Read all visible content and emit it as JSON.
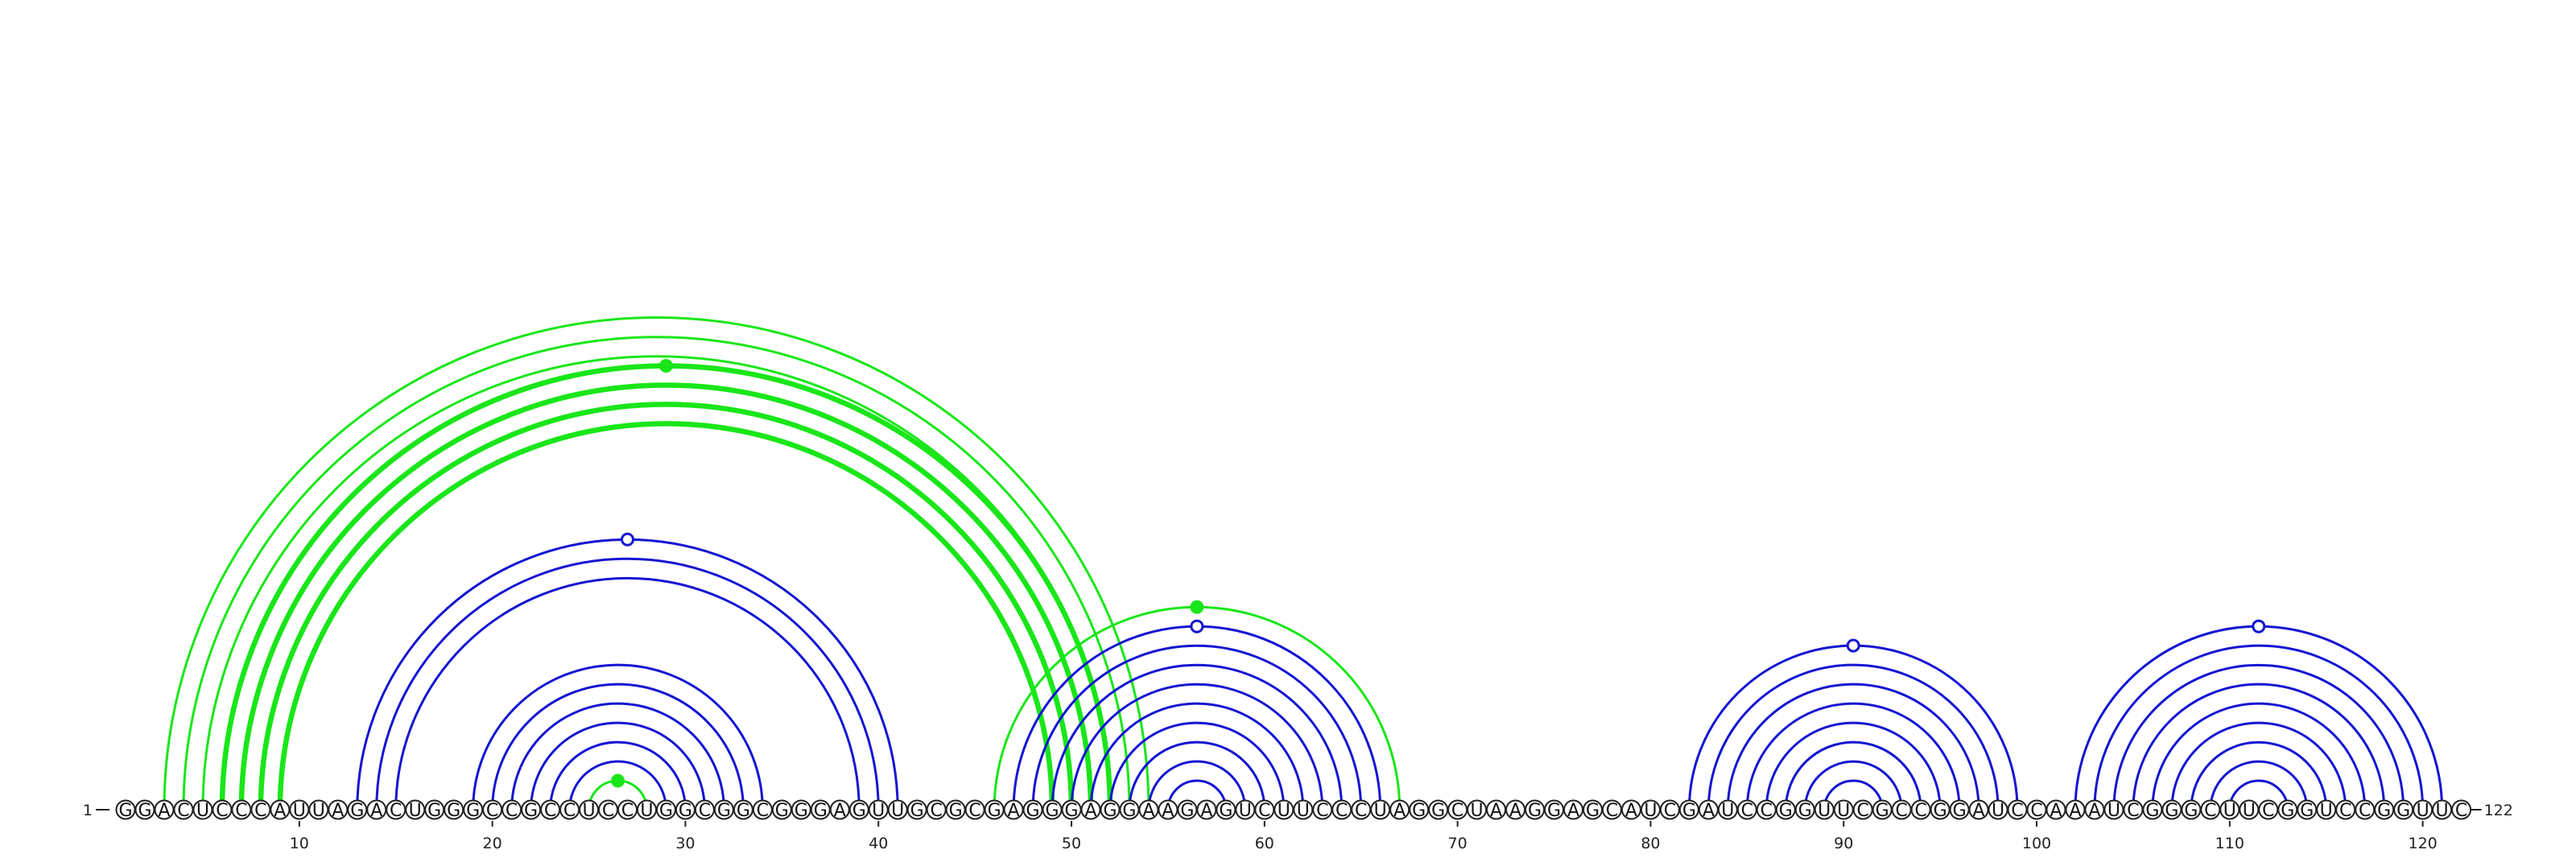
{
  "diagram": {
    "sequence": "GGACUCCCAUUAGACUGGGCCGCCUCCUGGCGGCGGGAGUUGCGCGAGGGAGGAAGAGUCUUCCCUAGGCUAAGGAGCAUCGAUCCGGUUCGCCGGAUCCAAAUCGGGCUUCGGUCCGGUUC",
    "start_label": "1",
    "end_label": "122",
    "ticks": [
      10,
      20,
      30,
      40,
      50,
      60,
      70,
      80,
      90,
      100,
      110,
      120
    ],
    "colors": {
      "green": "#19e619",
      "blue": "#1414d2",
      "backbone": "#222222"
    },
    "arc_groups": [
      {
        "color": "green",
        "heavy": true,
        "pairs": [
          [
            6,
            52
          ],
          [
            7,
            51
          ],
          [
            8,
            50
          ],
          [
            9,
            49
          ]
        ],
        "marker": "filled"
      },
      {
        "color": "green",
        "heavy": false,
        "pairs": [
          [
            3,
            54
          ],
          [
            4,
            53
          ],
          [
            5,
            52
          ]
        ]
      },
      {
        "color": "blue",
        "heavy": false,
        "pairs": [
          [
            13,
            41
          ],
          [
            14,
            40
          ],
          [
            15,
            39
          ]
        ],
        "marker": "open"
      },
      {
        "color": "blue",
        "heavy": false,
        "pairs": [
          [
            19,
            34
          ],
          [
            20,
            33
          ],
          [
            21,
            32
          ],
          [
            22,
            31
          ],
          [
            23,
            30
          ],
          [
            24,
            29
          ]
        ]
      },
      {
        "color": "green",
        "heavy": false,
        "pairs": [
          [
            25,
            28
          ]
        ],
        "marker": "filled"
      },
      {
        "color": "green",
        "heavy": false,
        "pairs": [
          [
            46,
            67
          ]
        ],
        "marker": "filled"
      },
      {
        "color": "blue",
        "heavy": false,
        "pairs": [
          [
            47,
            66
          ],
          [
            48,
            65
          ],
          [
            49,
            64
          ],
          [
            50,
            63
          ],
          [
            51,
            62
          ],
          [
            52,
            61
          ],
          [
            53,
            60
          ],
          [
            54,
            59
          ],
          [
            55,
            58
          ]
        ],
        "marker": "open"
      },
      {
        "color": "blue",
        "heavy": false,
        "pairs": [
          [
            82,
            99
          ],
          [
            83,
            98
          ],
          [
            84,
            97
          ],
          [
            85,
            96
          ],
          [
            86,
            95
          ],
          [
            87,
            94
          ],
          [
            88,
            93
          ],
          [
            89,
            92
          ]
        ],
        "marker": "open"
      },
      {
        "color": "blue",
        "heavy": false,
        "pairs": [
          [
            102,
            121
          ],
          [
            103,
            120
          ],
          [
            104,
            119
          ],
          [
            105,
            118
          ],
          [
            106,
            117
          ],
          [
            107,
            116
          ],
          [
            108,
            115
          ],
          [
            109,
            114
          ],
          [
            110,
            113
          ]
        ],
        "marker": "open"
      }
    ]
  }
}
